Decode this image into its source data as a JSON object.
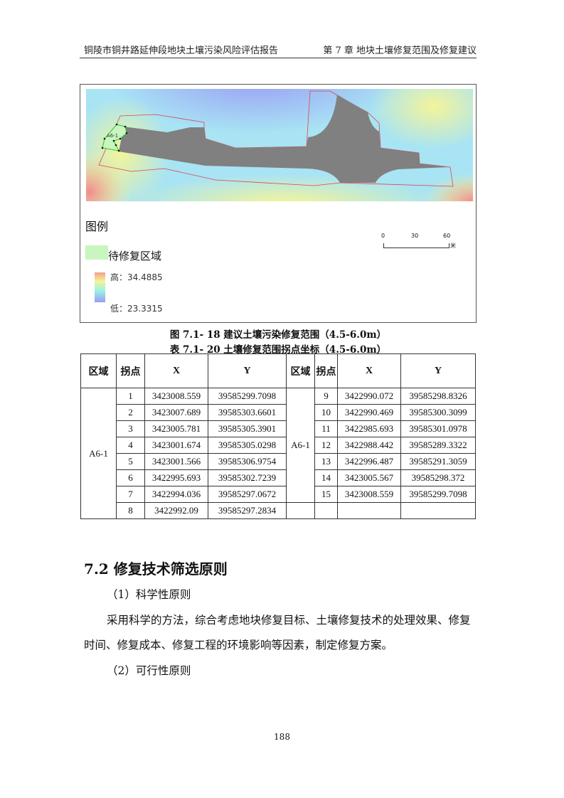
{
  "header": {
    "left": "铜陵市铜井路延伸段地块土壤污染风险评估报告",
    "right": "第 7 章  地块土壤修复范围及修复建议"
  },
  "figure": {
    "area_label": "A6-1",
    "legend_title": "图例",
    "legend_repair": "待修复区域",
    "legend_high": "高：34.4885",
    "legend_low": "低：23.3315",
    "scale_ticks": [
      "0",
      "30",
      "60"
    ],
    "scale_unit": "米",
    "colors": {
      "repair": "#c8f5c0",
      "remediation": "#808080",
      "boundary": "#e04050",
      "high": "#f08080",
      "low": "#9090f0"
    },
    "caption": "图 7.1- 18 建议土壤污染修复范围（4.5-6.0m）"
  },
  "table": {
    "caption": "表 7.1- 20 土壤修复范围拐点坐标（4.5-6.0m）",
    "headers": [
      "区域",
      "拐点",
      "X",
      "Y",
      "区域",
      "拐点",
      "X",
      "Y"
    ],
    "region": "A6-1",
    "left": [
      [
        "1",
        "3423008.559",
        "39585299.7098"
      ],
      [
        "2",
        "3423007.689",
        "39585303.6601"
      ],
      [
        "3",
        "3423005.781",
        "39585305.3901"
      ],
      [
        "4",
        "3423001.674",
        "39585305.0298"
      ],
      [
        "5",
        "3423001.566",
        "39585306.9754"
      ],
      [
        "6",
        "3422995.693",
        "39585302.7239"
      ],
      [
        "7",
        "3422994.036",
        "39585297.0672"
      ],
      [
        "8",
        "3422992.09",
        "39585297.2834"
      ]
    ],
    "right": [
      [
        "9",
        "3422990.072",
        "39585298.8326"
      ],
      [
        "10",
        "3422990.469",
        "39585300.3099"
      ],
      [
        "11",
        "3422985.693",
        "39585301.0978"
      ],
      [
        "12",
        "3422988.442",
        "39585289.3322"
      ],
      [
        "13",
        "3422996.487",
        "39585291.3059"
      ],
      [
        "14",
        "3423005.567",
        "39585298.372"
      ],
      [
        "15",
        "3423008.559",
        "39585299.7098"
      ]
    ]
  },
  "section": {
    "title": "7.2 修复技术筛选原则",
    "p1": "（1）科学性原则",
    "p2a": "采用科学的方法，综合考虑地块修复目标、土壤修复技术的处理效果、修复",
    "p2b": "时间、修复成本、修复工程的环境影响等因素，制定修复方案。",
    "p3": "（2）可行性原则"
  },
  "page_number": "188"
}
